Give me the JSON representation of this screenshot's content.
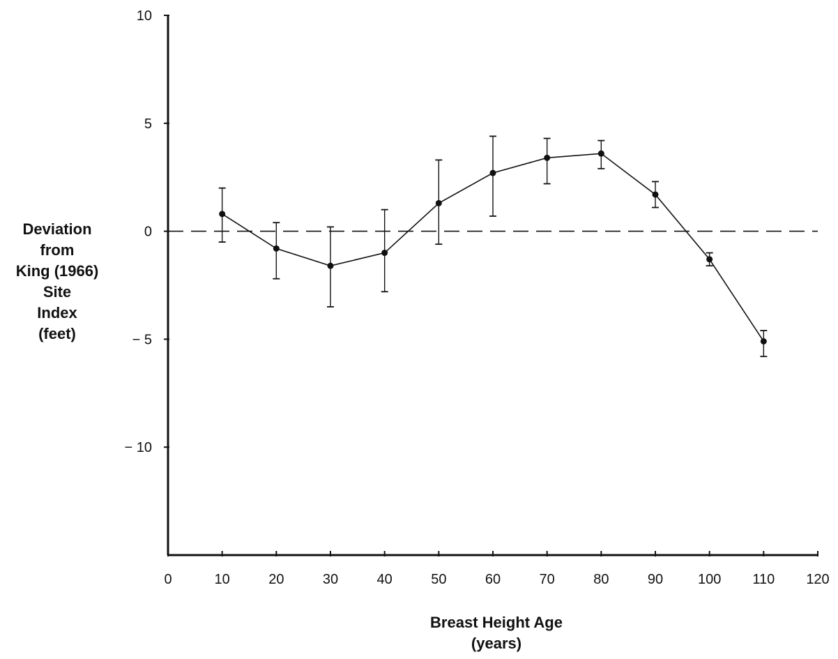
{
  "chart_data": {
    "type": "line",
    "title": "",
    "xlabel": [
      "Breast Height Age",
      "(years)"
    ],
    "ylabel": [
      "Deviation",
      "from",
      "King (1966)",
      "Site",
      "Index",
      "(feet)"
    ],
    "xlim": [
      0,
      120
    ],
    "ylim": [
      -15,
      10
    ],
    "x_ticks": [
      0,
      10,
      20,
      30,
      40,
      50,
      60,
      70,
      80,
      90,
      100,
      110,
      120
    ],
    "x_tick_labels": [
      "0",
      "10",
      "20",
      "30",
      "40",
      "50",
      "60",
      "70",
      "80",
      "90",
      "100",
      "110",
      "120"
    ],
    "y_ticks": [
      10,
      5,
      0,
      -5,
      -10
    ],
    "y_tick_labels": [
      "10",
      "5",
      "0",
      "− 5",
      "− 10"
    ],
    "grid": false,
    "reference_line": {
      "y": 0,
      "style": "dashed"
    },
    "series": [
      {
        "x": [
          10,
          20,
          30,
          40,
          50,
          60,
          70,
          80,
          90,
          100,
          110
        ],
        "values": [
          0.8,
          -0.8,
          -1.6,
          -1.0,
          1.3,
          2.7,
          3.4,
          3.6,
          1.7,
          -1.3,
          -5.1
        ],
        "error_low": [
          -0.5,
          -2.2,
          -3.5,
          -2.8,
          -0.6,
          0.7,
          2.2,
          2.9,
          1.1,
          -1.6,
          -5.8
        ],
        "error_high": [
          2.0,
          0.4,
          0.2,
          1.0,
          3.3,
          4.4,
          4.3,
          4.2,
          2.3,
          -1.0,
          -4.6
        ]
      }
    ],
    "colors": {
      "ink": "#111111",
      "background": "#ffffff"
    }
  }
}
